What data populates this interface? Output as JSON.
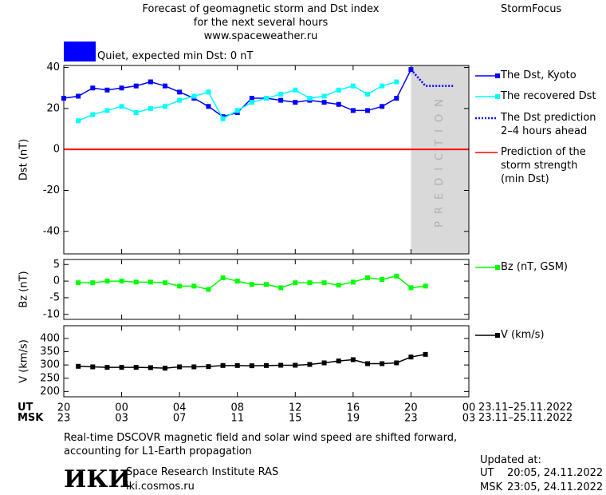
{
  "header": {
    "title_lines": [
      "Forecast of geomagnetic storm and Dst index",
      "for the next several hours",
      "www.spaceweather.ru"
    ],
    "brand": "StormFocus"
  },
  "status": {
    "color": "#0000ff",
    "text": "Quiet, expected min Dst: 0 nT"
  },
  "x_axis": {
    "xlim": [
      0,
      28
    ],
    "xticks": [
      {
        "value": 0,
        "label": "20"
      },
      {
        "value": 4,
        "label": "00"
      },
      {
        "value": 8,
        "label": "04"
      },
      {
        "value": 12,
        "label": "08"
      },
      {
        "value": 16,
        "label": "12"
      },
      {
        "value": 20,
        "label": "16"
      },
      {
        "value": 24,
        "label": "20"
      },
      {
        "value": 28,
        "label": "00"
      }
    ],
    "msk_ticks": [
      {
        "value": 0,
        "label": "23"
      },
      {
        "value": 4,
        "label": "03"
      },
      {
        "value": 8,
        "label": "07"
      },
      {
        "value": 12,
        "label": "11"
      },
      {
        "value": 16,
        "label": "15"
      },
      {
        "value": 20,
        "label": "19"
      },
      {
        "value": 24,
        "label": "23"
      },
      {
        "value": 28,
        "label": "03"
      }
    ],
    "ut_label": "UT",
    "msk_label": "MSK",
    "ut_dates": "23.11–25.11.2022",
    "msk_dates": "23.11–25.11.2022"
  },
  "chart_data": [
    {
      "type": "line",
      "y_label": "Dst (nT)",
      "ylim": [
        -51,
        41
      ],
      "yticks": [
        -40,
        -20,
        0,
        20,
        40
      ],
      "prediction_region": {
        "label": "PREDICTION",
        "x": [
          24,
          28
        ]
      },
      "storm_prediction": {
        "name": "Prediction of the storm strength (min Dst)",
        "color": "#ff0000",
        "value": 0
      },
      "series": [
        {
          "name": "The Dst, Kyoto",
          "color": "#0000ff",
          "style": "solid",
          "marker": true,
          "x": [
            0,
            1,
            2,
            3,
            4,
            5,
            6,
            7,
            8,
            9,
            10,
            11,
            12,
            13,
            14,
            15,
            16,
            17,
            18,
            19,
            20,
            21,
            22,
            23,
            24
          ],
          "values": [
            25,
            26,
            30,
            29,
            30,
            31,
            33,
            31,
            28,
            25,
            21,
            16,
            18,
            25,
            25,
            24,
            23,
            24,
            23,
            22,
            19,
            19,
            21,
            25,
            39
          ]
        },
        {
          "name": "The recovered Dst",
          "color": "#00ffff",
          "style": "solid",
          "marker": true,
          "x": [
            1,
            2,
            3,
            4,
            5,
            6,
            7,
            8,
            9,
            10,
            11,
            12,
            13,
            14,
            15,
            16,
            17,
            18,
            19,
            20,
            21,
            22,
            23
          ],
          "values": [
            14,
            17,
            19,
            21,
            18,
            20,
            21,
            24,
            26,
            28,
            15,
            19,
            23,
            25,
            27,
            29,
            25,
            26,
            29,
            31,
            27,
            31,
            33
          ]
        },
        {
          "name": "The Dst prediction 2–4 hours ahead",
          "color": "#0000ff",
          "style": "dotted",
          "marker": false,
          "x": [
            24,
            25,
            26,
            27
          ],
          "values": [
            39,
            31,
            31,
            31
          ]
        }
      ]
    },
    {
      "type": "line",
      "y_label": "Bz (nT)",
      "ylim": [
        -11.5,
        6.5
      ],
      "yticks": [
        -10,
        -5,
        0,
        5
      ],
      "series": [
        {
          "name": "Bz (nT, GSM)",
          "color": "#00ff00",
          "style": "solid",
          "marker": true,
          "x": [
            1,
            2,
            3,
            4,
            5,
            6,
            7,
            8,
            9,
            10,
            11,
            12,
            13,
            14,
            15,
            16,
            17,
            18,
            19,
            20,
            21,
            22,
            23,
            24,
            25
          ],
          "values": [
            -0.5,
            -0.5,
            0,
            0,
            -0.3,
            -0.3,
            -0.5,
            -1.5,
            -1.5,
            -2.5,
            1,
            0,
            -1,
            -1,
            -2,
            -0.5,
            -0.5,
            -0.5,
            -1.2,
            -0.3,
            1,
            0.5,
            1.5,
            -2,
            -1.5
          ]
        }
      ]
    },
    {
      "type": "line",
      "y_label": "V (km/s)",
      "ylim": [
        180,
        448
      ],
      "yticks": [
        200,
        250,
        300,
        350,
        400
      ],
      "series": [
        {
          "name": "V (km/s)",
          "color": "#000000",
          "style": "solid",
          "marker": true,
          "x": [
            1,
            2,
            3,
            4,
            5,
            6,
            7,
            8,
            9,
            10,
            11,
            12,
            13,
            14,
            15,
            16,
            17,
            18,
            19,
            20,
            21,
            22,
            23,
            24,
            25
          ],
          "values": [
            295,
            293,
            291,
            291,
            291,
            290,
            288,
            293,
            293,
            294,
            298,
            298,
            297,
            298,
            299,
            299,
            302,
            308,
            315,
            320,
            305,
            305,
            308,
            330,
            340
          ]
        }
      ]
    }
  ],
  "footer": {
    "note": "Real-time DSCOVR magnetic field and solar wind speed are shifted forward, accounting for L1-Earth propagation",
    "logo": "ИКИ",
    "institute": "Space Research Institute RAS",
    "site": "iki.cosmos.ru",
    "updated_label": "Updated at:",
    "ut_label": "UT",
    "ut_time": "20:05, 24.11.2022",
    "msk_label": "MSK",
    "msk_time": "23:05, 24.11.2022"
  }
}
